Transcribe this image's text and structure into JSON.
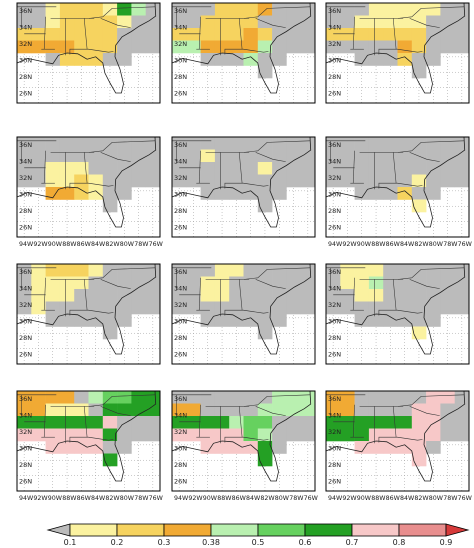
{
  "figure": {
    "layout": "4 rows x 3 columns of maps",
    "region": "Southeastern United States"
  },
  "chart_data": {
    "type": "heatmap",
    "grid": "2 deg lon x 2 deg lat cells",
    "longitude_ticks": [
      "94W",
      "92W",
      "90W",
      "88W",
      "86W",
      "84W",
      "82W",
      "80W",
      "78W",
      "76W"
    ],
    "latitude_ticks": [
      "36N",
      "34N",
      "32N",
      "30N",
      "28N",
      "26N"
    ],
    "colorbar": {
      "tick_labels": [
        "0.1",
        "0.2",
        "0.3",
        "0.38",
        "0.5",
        "0.6",
        "0.7",
        "0.8",
        "0.9"
      ],
      "colors": [
        "#bbbbbb",
        "#fbf2a0",
        "#f6d35f",
        "#f1aa34",
        "#b9f0b0",
        "#66d15f",
        "#24a024",
        "#f7c8c8",
        "#e88e8e",
        "#d63a3a"
      ],
      "extend": "both"
    },
    "category_colors": {
      "0": "#bbbbbb",
      "1": "#fbf2a0",
      "2": "#f6d35f",
      "3": "#f1aa34",
      "4": "#b9f0b0",
      "5": "#66d15f",
      "6": "#24a024",
      "7": "#f7c8c8",
      "8": "#e88e8e",
      "9": "#d63a3a"
    },
    "panels": [
      {
        "row": 1,
        "col": 1,
        "lon_labels_shown": false,
        "lat_labels_shown": true,
        "grid": [
          "0012221640",
          "0012222100",
          "2222222000",
          "3333222000",
          "..022200..",
          "..........",
          "..........",
          "........."
        ]
      },
      {
        "row": 1,
        "col": 2,
        "lon_labels_shown": false,
        "lat_labels_shown": true,
        "grid": [
          "0002223000",
          "0022220000",
          "2222232000",
          "4433334000",
          "..000400..",
          "......0...",
          "..........",
          "........."
        ]
      },
      {
        "row": 1,
        "col": 3,
        "lon_labels_shown": false,
        "lat_labels_shown": true,
        "grid": [
          "0001111100",
          "0011111000",
          "2222222000",
          "0000032000",
          "..000200..",
          "......0...",
          "..........",
          "........."
        ]
      },
      {
        "row": 2,
        "col": 1,
        "lon_labels_shown": true,
        "lat_labels_shown": true,
        "grid": [
          "0000000000",
          "0000000000",
          "0011100000",
          "0011210000",
          "..332100..",
          "......0...",
          "..........",
          "........."
        ]
      },
      {
        "row": 2,
        "col": 2,
        "lon_labels_shown": false,
        "lat_labels_shown": true,
        "grid": [
          "0000000000",
          "0010000000",
          "0000001000",
          "0000000000",
          "..000000..",
          "......0...",
          "..........",
          "........."
        ]
      },
      {
        "row": 2,
        "col": 3,
        "lon_labels_shown": true,
        "lat_labels_shown": true,
        "grid": [
          "0000000000",
          "0000000000",
          "0000000000",
          "0000001000",
          "..000200..",
          "......1...",
          "..........",
          "........."
        ]
      },
      {
        "row": 3,
        "col": 1,
        "lon_labels_shown": false,
        "lat_labels_shown": true,
        "grid": [
          "0122210000",
          "0111100000",
          "0111000000",
          "0100000000",
          "..000000..",
          "......0...",
          "..........",
          "........."
        ]
      },
      {
        "row": 3,
        "col": 2,
        "lon_labels_shown": false,
        "lat_labels_shown": true,
        "grid": [
          "0001100000",
          "0011000000",
          "0011000000",
          "0000000000",
          "..000000..",
          "......0...",
          "..........",
          "........."
        ]
      },
      {
        "row": 3,
        "col": 3,
        "lon_labels_shown": false,
        "lat_labels_shown": true,
        "grid": [
          "0111000000",
          "0114000000",
          "0011000000",
          "0000000000",
          "..000000..",
          "......1...",
          "..........",
          "........."
        ]
      },
      {
        "row": 4,
        "col": 1,
        "lon_labels_shown": true,
        "lat_labels_shown": true,
        "grid": [
          "3333045566",
          "3311106666",
          "6666667000",
          "7777776000",
          "..777700..",
          "......6...",
          "..........",
          "........."
        ]
      },
      {
        "row": 4,
        "col": 2,
        "lon_labels_shown": true,
        "lat_labels_shown": true,
        "grid": [
          "0000000444",
          "3300004444",
          "6666455000",
          "7777754000",
          "..777760..",
          "......6...",
          "..........",
          "........."
        ]
      },
      {
        "row": 4,
        "col": 3,
        "lon_labels_shown": true,
        "lat_labels_shown": true,
        "grid": [
          "3300000770",
          "3300007700",
          "6666667700",
          "6667777700",
          "..777770..",
          "......7...",
          "..........",
          "........."
        ]
      }
    ]
  }
}
